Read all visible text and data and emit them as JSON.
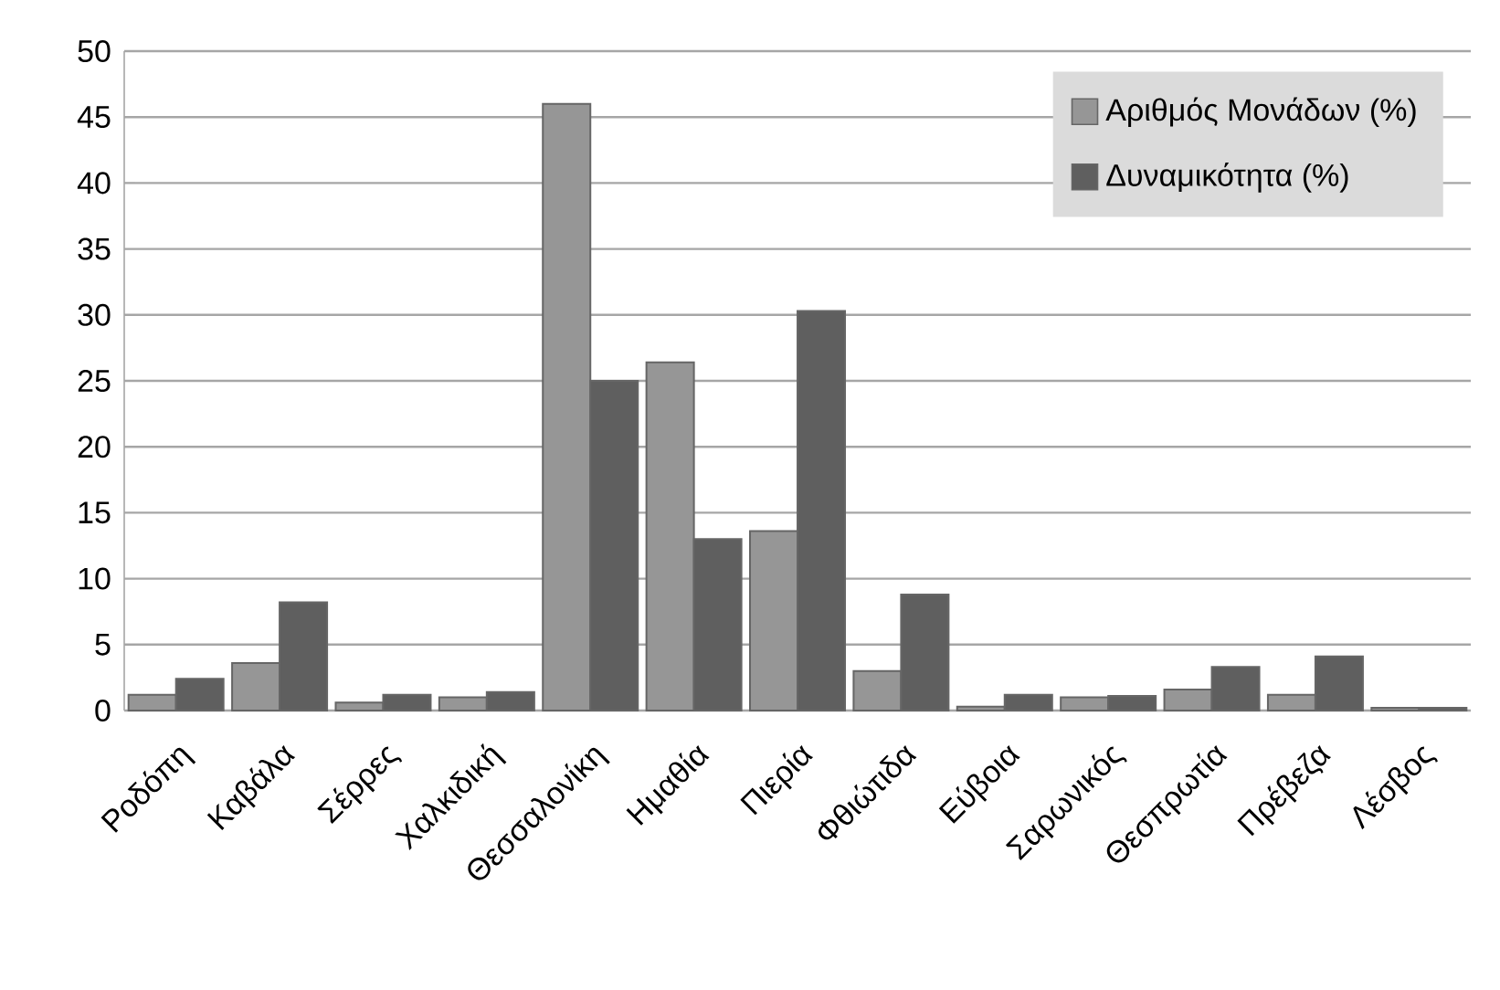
{
  "chart_data": {
    "type": "bar",
    "categories": [
      "Ροδόπη",
      "Καβάλα",
      "Σέρρες",
      "Χαλκιδική",
      "Θεσσαλονίκη",
      "Ημαθία",
      "Πιερία",
      "Φθιώτιδα",
      "Εύβοια",
      "Σαρωνικός",
      "Θεσπρωτία",
      "Πρέβεζα",
      "Λέσβος"
    ],
    "series": [
      {
        "name": "Αριθμός Μονάδων (%)",
        "color": "#969696",
        "values": [
          1.2,
          3.6,
          0.6,
          1.0,
          46,
          26.4,
          13.6,
          3.0,
          0.3,
          1.0,
          1.6,
          1.2,
          0.2
        ]
      },
      {
        "name": "Δυναμικότητα (%)",
        "color": "#5f5f5f",
        "values": [
          2.4,
          8.2,
          1.2,
          1.4,
          25.0,
          13.0,
          30.3,
          8.8,
          1.2,
          1.1,
          3.3,
          4.1,
          0.2
        ]
      }
    ],
    "ylim": [
      0,
      50
    ],
    "yticks": [
      0,
      5,
      10,
      15,
      20,
      25,
      30,
      35,
      40,
      45,
      50
    ],
    "grid": "y",
    "legend": "top right"
  }
}
